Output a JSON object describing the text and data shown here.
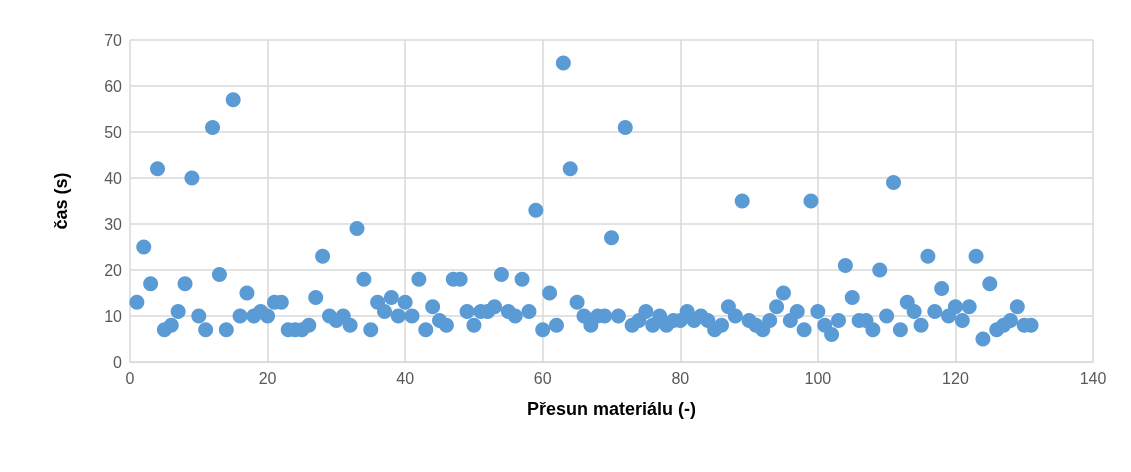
{
  "chart_data": {
    "type": "scatter",
    "xlabel": "Přesun materiálu (-)",
    "ylabel": "čas (s)",
    "x": [
      1,
      2,
      3,
      4,
      5,
      6,
      7,
      8,
      9,
      10,
      11,
      12,
      13,
      14,
      15,
      16,
      17,
      18,
      19,
      20,
      21,
      22,
      23,
      24,
      25,
      26,
      27,
      28,
      29,
      30,
      31,
      32,
      33,
      34,
      35,
      36,
      37,
      38,
      39,
      40,
      41,
      42,
      43,
      44,
      45,
      46,
      47,
      48,
      49,
      50,
      51,
      52,
      53,
      54,
      55,
      56,
      57,
      58,
      59,
      60,
      61,
      62,
      63,
      64,
      65,
      66,
      67,
      68,
      69,
      70,
      71,
      72,
      73,
      74,
      75,
      76,
      77,
      78,
      79,
      80,
      81,
      82,
      83,
      84,
      85,
      86,
      87,
      88,
      89,
      90,
      91,
      92,
      93,
      94,
      95,
      96,
      97,
      98,
      99,
      100,
      101,
      102,
      103,
      104,
      105,
      106,
      107,
      108,
      109,
      110,
      111,
      112,
      113,
      114,
      115,
      116,
      117,
      118,
      119,
      120,
      121,
      122,
      123,
      124,
      125,
      126,
      127,
      128,
      129,
      130,
      131
    ],
    "values": [
      13,
      25,
      17,
      42,
      7,
      8,
      11,
      17,
      40,
      10,
      7,
      51,
      19,
      7,
      57,
      10,
      15,
      10,
      11,
      10,
      13,
      13,
      7,
      7,
      7,
      8,
      14,
      23,
      10,
      9,
      10,
      8,
      29,
      18,
      7,
      13,
      11,
      14,
      10,
      13,
      10,
      18,
      7,
      12,
      9,
      8,
      18,
      18,
      11,
      8,
      11,
      11,
      12,
      19,
      11,
      10,
      18,
      11,
      33,
      7,
      15,
      8,
      65,
      42,
      13,
      10,
      8,
      10,
      10,
      27,
      10,
      51,
      8,
      9,
      11,
      8,
      10,
      8,
      9,
      9,
      11,
      9,
      10,
      9,
      7,
      8,
      12,
      10,
      35,
      9,
      8,
      7,
      9,
      12,
      15,
      9,
      11,
      7,
      35,
      11,
      8,
      6,
      9,
      21,
      14,
      9,
      9,
      7,
      20,
      10,
      39,
      7,
      13,
      11,
      8,
      23,
      11,
      16,
      10,
      12,
      9,
      12,
      23,
      5,
      17,
      7,
      8,
      9,
      12,
      8,
      8
    ],
    "color": "#5b9bd5",
    "marker": "circle",
    "grid": true,
    "xlim": [
      0,
      140
    ],
    "xticks": [
      0,
      20,
      40,
      60,
      80,
      100,
      120,
      140
    ],
    "ylim": [
      0,
      70
    ],
    "yticks": [
      0,
      10,
      20,
      30,
      40,
      50,
      60,
      70
    ]
  }
}
